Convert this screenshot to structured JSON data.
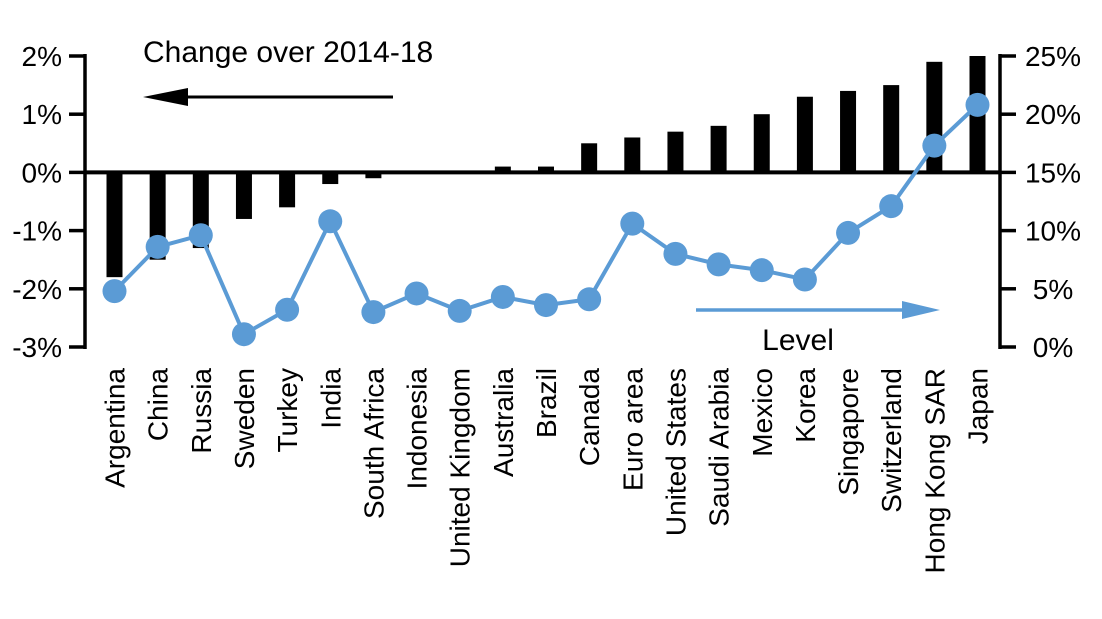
{
  "chart_data": {
    "type": "bar",
    "subtype": "combo-bar-line-dual-axis",
    "categories": [
      "Argentina",
      "China",
      "Russia",
      "Sweden",
      "Turkey",
      "India",
      "South Africa",
      "Indonesia",
      "United Kingdom",
      "Australia",
      "Brazil",
      "Canada",
      "Euro area",
      "United States",
      "Saudi Arabia",
      "Mexico",
      "Korea",
      "Singapore",
      "Switzerland",
      "Hong Kong SAR",
      "Japan"
    ],
    "series": [
      {
        "name": "Change over 2014-18",
        "type": "bar",
        "axis": "left",
        "color": "#000000",
        "unit": "%",
        "values": [
          -1.8,
          -1.5,
          -1.3,
          -0.8,
          -0.6,
          -0.2,
          -0.1,
          0,
          0,
          0.1,
          0.1,
          0.5,
          0.6,
          0.7,
          0.8,
          1.0,
          1.3,
          1.4,
          1.5,
          1.9,
          2.0
        ]
      },
      {
        "name": "Level",
        "type": "line",
        "axis": "right",
        "color": "#5B9BD5",
        "unit": "%",
        "values": [
          4.8,
          8.6,
          9.6,
          1.1,
          3.2,
          10.8,
          3.0,
          4.6,
          3.1,
          4.3,
          3.6,
          4.1,
          10.6,
          8.0,
          7.1,
          6.6,
          5.8,
          9.8,
          12.1,
          17.3,
          20.8
        ]
      }
    ],
    "left_axis": {
      "min": -3,
      "max": 2,
      "tick_labels": [
        "2%",
        "1%",
        "0%",
        "-1%",
        "-2%",
        "-3%"
      ],
      "tick_values": [
        2,
        1,
        0,
        -1,
        -2,
        -3
      ]
    },
    "right_axis": {
      "min": 0,
      "max": 25,
      "tick_labels": [
        "25%",
        "20%",
        "15%",
        "10%",
        "5%",
        "0%"
      ],
      "tick_values": [
        25,
        20,
        15,
        10,
        5,
        0
      ]
    },
    "grid": false,
    "legend_position": "in-plot annotations with directional arrows"
  },
  "annotations": {
    "left_label": "Change over 2014-18",
    "right_label": "Level"
  },
  "colors": {
    "bar": "#000000",
    "line": "#5B9BD5",
    "axis": "#000000",
    "background": "#FFFFFF"
  }
}
